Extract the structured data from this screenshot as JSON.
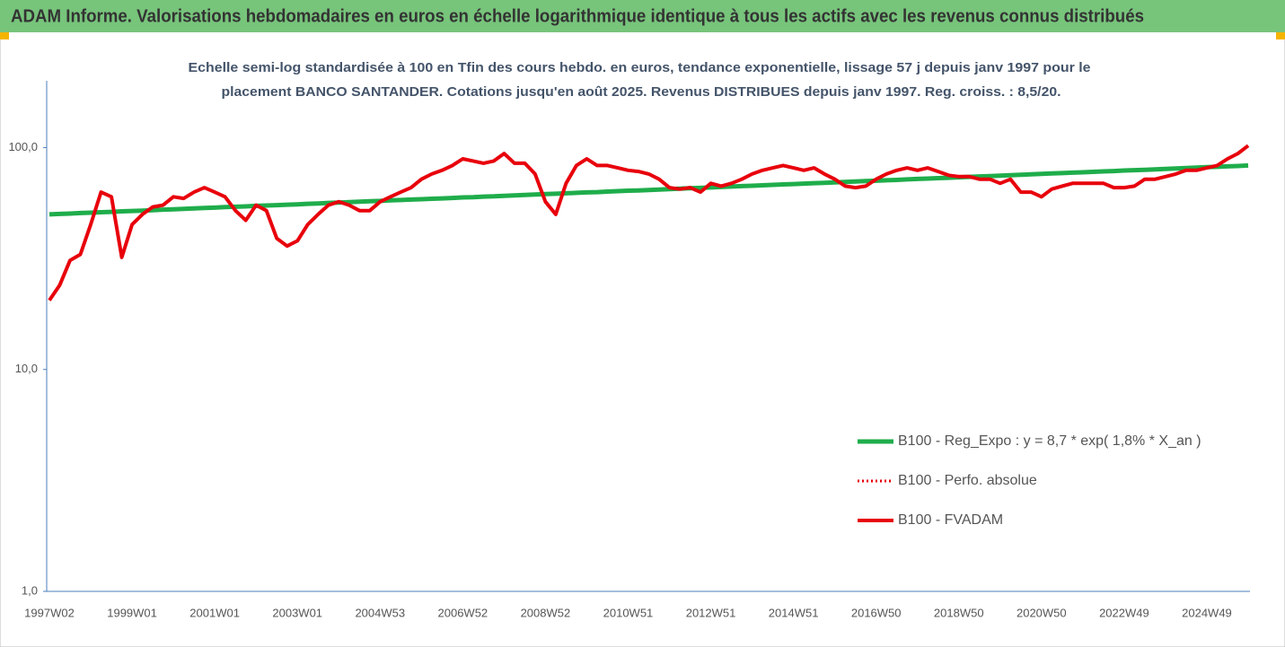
{
  "header": {
    "title": "ADAM Informe. Valorisations hebdomadaires en euros en échelle logarithmique identique à tous les actifs avec les revenus connus distribués"
  },
  "chart_data": {
    "type": "line",
    "subtitle": [
      "Echelle semi-log standardisée à 100 en Tfin des cours hebdo. en euros, tendance exponentielle, lissage 57 j depuis janv 1997 pour le",
      "placement BANCO SANTANDER. Cotations jusqu'en août 2025. Revenus DISTRIBUES depuis janv 1997. Reg. croiss. : 8,5/20."
    ],
    "log_y": true,
    "ylim": [
      1,
      200
    ],
    "yticks": [
      {
        "value": 1,
        "label": "1,0"
      },
      {
        "value": 10,
        "label": "10,0"
      },
      {
        "value": 100,
        "label": "100,0"
      }
    ],
    "grid": false,
    "legend": "lower right",
    "categories": [
      "1997W02",
      null,
      null,
      null,
      null,
      null,
      null,
      null,
      "1999W01",
      null,
      null,
      null,
      null,
      null,
      null,
      null,
      "2001W01",
      null,
      null,
      null,
      null,
      null,
      null,
      null,
      "2003W01",
      null,
      null,
      null,
      null,
      null,
      null,
      null,
      "2004W53",
      null,
      null,
      null,
      null,
      null,
      null,
      null,
      "2006W52",
      null,
      null,
      null,
      null,
      null,
      null,
      null,
      "2008W52",
      null,
      null,
      null,
      null,
      null,
      null,
      null,
      "2010W51",
      null,
      null,
      null,
      null,
      null,
      null,
      null,
      "2012W51",
      null,
      null,
      null,
      null,
      null,
      null,
      null,
      "2014W51",
      null,
      null,
      null,
      null,
      null,
      null,
      null,
      "2016W50",
      null,
      null,
      null,
      null,
      null,
      null,
      null,
      "2018W50",
      null,
      null,
      null,
      null,
      null,
      null,
      null,
      "2020W50",
      null,
      null,
      null,
      null,
      null,
      null,
      null,
      "2022W49",
      null,
      null,
      null,
      null,
      null,
      null,
      null,
      "2024W49",
      null,
      null,
      null,
      null
    ],
    "series": [
      {
        "name": "B100 - Reg_Expo : y = 8,7 * exp( 1,8% *  X_an )",
        "color": "#1fad4b",
        "style": "solid",
        "width": 5,
        "values": [
          50.0,
          50.2,
          50.4,
          50.7,
          50.9,
          51.1,
          51.3,
          51.6,
          51.8,
          52.0,
          52.2,
          52.5,
          52.7,
          52.9,
          53.2,
          53.4,
          53.6,
          53.9,
          54.1,
          54.3,
          54.6,
          54.8,
          55.0,
          55.3,
          55.5,
          55.8,
          56.0,
          56.3,
          56.5,
          56.8,
          57.0,
          57.3,
          57.5,
          57.8,
          58.0,
          58.3,
          58.5,
          58.8,
          59.0,
          59.3,
          59.6,
          59.8,
          60.1,
          60.3,
          60.6,
          60.9,
          61.1,
          61.4,
          61.7,
          61.9,
          62.2,
          62.5,
          62.8,
          63.0,
          63.3,
          63.6,
          63.9,
          64.1,
          64.4,
          64.7,
          65.0,
          65.3,
          65.6,
          65.8,
          66.1,
          66.4,
          66.7,
          67.0,
          67.3,
          67.6,
          67.9,
          68.2,
          68.5,
          68.8,
          69.1,
          69.4,
          69.7,
          70.0,
          70.3,
          70.6,
          70.9,
          71.2,
          71.5,
          71.9,
          72.2,
          72.5,
          72.8,
          73.1,
          73.4,
          73.8,
          74.1,
          74.4,
          74.7,
          75.1,
          75.4,
          75.7,
          76.1,
          76.4,
          76.7,
          77.1,
          77.4,
          77.7,
          78.1,
          78.4,
          78.8,
          79.1,
          79.4,
          79.8,
          80.1,
          80.5,
          80.8,
          81.2,
          81.6,
          81.9,
          82.3,
          82.6,
          83.0
        ]
      },
      {
        "name": "B100 - Perfo. absolue",
        "color": "#e8000b",
        "style": "dotted",
        "width": 3,
        "values": [
          20.5,
          24,
          31,
          33,
          45,
          63,
          60,
          32,
          45,
          50,
          54,
          55,
          60,
          59,
          63,
          66,
          63,
          60,
          52,
          47,
          55,
          52,
          39,
          36,
          38,
          45,
          50,
          55,
          57,
          55,
          52,
          52,
          57,
          60,
          63,
          66,
          72,
          76,
          79,
          83,
          89,
          87,
          85,
          87,
          94,
          85,
          85,
          76,
          57,
          50,
          69,
          83,
          89,
          83,
          83,
          81,
          79,
          78,
          76,
          72,
          66,
          65,
          66,
          63,
          69,
          67,
          69,
          72,
          76,
          79,
          81,
          83,
          81,
          79,
          81,
          76,
          72,
          67,
          66,
          67,
          72,
          76,
          79,
          81,
          79,
          81,
          78,
          75,
          74,
          74,
          72,
          72,
          69,
          72,
          63,
          63,
          60,
          65,
          67,
          69,
          69,
          69,
          69,
          66,
          66,
          67,
          72,
          72,
          74,
          76,
          79,
          79,
          81,
          83,
          89,
          94,
          102
        ]
      },
      {
        "name": "B100 - FVADAM",
        "color": "#e8000b",
        "style": "solid",
        "width": 4,
        "values": [
          20.5,
          24,
          31,
          33,
          45,
          63,
          60,
          32,
          45,
          50,
          54,
          55,
          60,
          59,
          63,
          66,
          63,
          60,
          52,
          47,
          55,
          52,
          39,
          36,
          38,
          45,
          50,
          55,
          57,
          55,
          52,
          52,
          57,
          60,
          63,
          66,
          72,
          76,
          79,
          83,
          89,
          87,
          85,
          87,
          94,
          85,
          85,
          76,
          57,
          50,
          69,
          83,
          89,
          83,
          83,
          81,
          79,
          78,
          76,
          72,
          66,
          65,
          66,
          63,
          69,
          67,
          69,
          72,
          76,
          79,
          81,
          83,
          81,
          79,
          81,
          76,
          72,
          67,
          66,
          67,
          72,
          76,
          79,
          81,
          79,
          81,
          78,
          75,
          74,
          74,
          72,
          72,
          69,
          72,
          63,
          63,
          60,
          65,
          67,
          69,
          69,
          69,
          69,
          66,
          66,
          67,
          72,
          72,
          74,
          76,
          79,
          79,
          81,
          83,
          89,
          94,
          102
        ]
      }
    ]
  }
}
